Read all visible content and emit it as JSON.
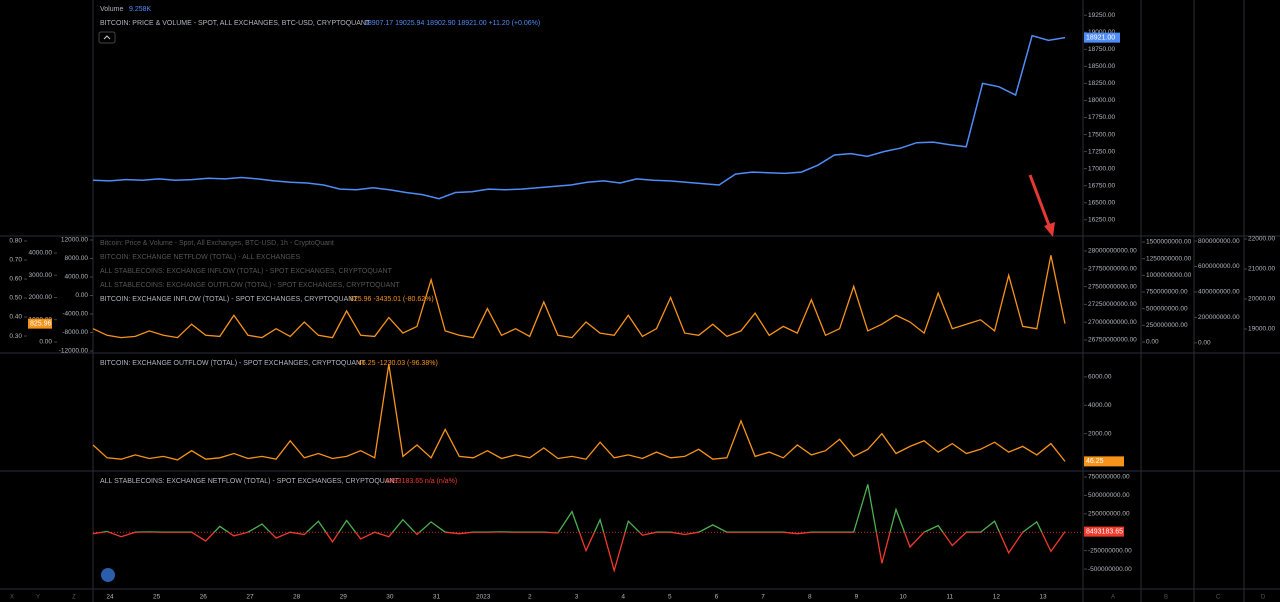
{
  "chart_data": [
    {
      "type": "line",
      "volume_label": "Volume",
      "volume_value": "9.258K",
      "title": "BITCOIN: PRICE & VOLUME - SPOT, ALL EXCHANGES, BTC-USD, CRYPTOQUANT",
      "ohlc": "18907.17 19025.94 18902.90 18921.00 +11.20 (+0.06%)",
      "price_tag": "18921.00",
      "color": "#4f8cf7",
      "values": [
        16830,
        16820,
        16840,
        16830,
        16850,
        16830,
        16840,
        16860,
        16850,
        16870,
        16850,
        16820,
        16800,
        16790,
        16760,
        16700,
        16690,
        16720,
        16690,
        16650,
        16620,
        16560,
        16650,
        16660,
        16700,
        16690,
        16700,
        16720,
        16740,
        16760,
        16800,
        16820,
        16790,
        16850,
        16830,
        16820,
        16800,
        16780,
        16760,
        16920,
        16950,
        16940,
        16930,
        16950,
        17050,
        17200,
        17220,
        17180,
        17250,
        17300,
        17380,
        17390,
        17350,
        17320,
        18250,
        18200,
        18080,
        18950,
        18880,
        18921
      ],
      "ylim": [
        16027,
        19473
      ],
      "yticks": [
        {
          "value": 19250,
          "label": "19250.00"
        },
        {
          "value": 19000,
          "label": "19000.00"
        },
        {
          "value": 18750,
          "label": "18750.00"
        },
        {
          "value": 18500,
          "label": "18500.00"
        },
        {
          "value": 18250,
          "label": "18250.00"
        },
        {
          "value": 18000,
          "label": "18000.00"
        },
        {
          "value": 17750,
          "label": "17750.00"
        },
        {
          "value": 17500,
          "label": "17500.00"
        },
        {
          "value": 17250,
          "label": "17250.00"
        },
        {
          "value": 17000,
          "label": "17000.00"
        },
        {
          "value": 16750,
          "label": "16750.00"
        },
        {
          "value": 16500,
          "label": "16500.00"
        },
        {
          "value": 16250,
          "label": "16250.00"
        }
      ],
      "xticks": [
        "24",
        "25",
        "26",
        "27",
        "28",
        "29",
        "30",
        "31",
        "2023",
        "2",
        "3",
        "4",
        "5",
        "6",
        "7",
        "8",
        "9",
        "10",
        "11",
        "12",
        "13"
      ]
    },
    {
      "type": "line",
      "legend": [
        "Bitcoin: Price & Volume - Spot, All Exchanges, BTC-USD, 1h - CryptoQuant",
        "BITCOIN: EXCHANGE NETFLOW (TOTAL) - ALL EXCHANGES",
        "ALL STABLECOINS: EXCHANGE INFLOW (TOTAL) - SPOT EXCHANGES, CRYPTOQUANT",
        "ALL STABLECOINS: EXCHANGE OUTFLOW (TOTAL) - SPOT EXCHANGES, CRYPTOQUANT"
      ],
      "title": "BITCOIN: EXCHANGE INFLOW (TOTAL) - SPOT EXCHANGES, CRYPTOQUANT",
      "stats": "825.96 -3435.01 (-80.62%)",
      "value_tag": "825.96",
      "color": "#f7931a",
      "values": [
        600,
        300,
        200,
        250,
        500,
        300,
        200,
        800,
        300,
        250,
        1200,
        300,
        200,
        600,
        250,
        900,
        300,
        200,
        1400,
        300,
        250,
        1100,
        400,
        700,
        2800,
        500,
        300,
        200,
        1500,
        300,
        600,
        250,
        1800,
        300,
        200,
        900,
        400,
        300,
        1200,
        250,
        600,
        2000,
        400,
        300,
        800,
        250,
        500,
        1300,
        300,
        700,
        400,
        1900,
        300,
        600,
        2500,
        500,
        800,
        1200,
        900,
        400,
        2200,
        600,
        800,
        1000,
        500,
        3000,
        700,
        600,
        3900,
        825.96
      ],
      "ylim": [
        -449,
        4719
      ],
      "yticks": [
        {
          "value": 4000,
          "label": "4000.00"
        },
        {
          "value": 3000,
          "label": "3000.00"
        },
        {
          "value": 2000,
          "label": "2000.00"
        },
        {
          "value": 1000,
          "label": "1000.00"
        },
        {
          "value": 0,
          "label": "0.00"
        }
      ],
      "extra_axes": [
        {
          "ylim": [
            0.216,
            0.821
          ],
          "yticks": [
            {
              "value": 0.8,
              "label": "0.80"
            },
            {
              "value": 0.7,
              "label": "0.70"
            },
            {
              "value": 0.6,
              "label": "0.60"
            },
            {
              "value": 0.5,
              "label": "0.50"
            },
            {
              "value": 0.4,
              "label": "0.40"
            },
            {
              "value": 0.3,
              "label": "0.30"
            }
          ]
        },
        {
          "ylim": [
            -12216,
            12649
          ],
          "yticks": [
            {
              "value": 12000,
              "label": "12000.00"
            },
            {
              "value": 8000,
              "label": "8000.00"
            },
            {
              "value": 4000,
              "label": "4000.00"
            },
            {
              "value": 0,
              "label": "0.00"
            },
            {
              "value": -4000,
              "label": "-4000.00"
            },
            {
              "value": -8000,
              "label": "-8000.00"
            },
            {
              "value": -12000,
              "label": "-12000.00"
            }
          ]
        },
        {
          "ylim": [
            26581000000,
            28197000000
          ],
          "yticks": [
            {
              "value": 28000000000,
              "label": "28000000000.00"
            },
            {
              "value": 27750000000,
              "label": "27750000000.00"
            },
            {
              "value": 27500000000,
              "label": "27500000000.00"
            },
            {
              "value": 27250000000,
              "label": "27250000000.00"
            },
            {
              "value": 27000000000,
              "label": "27000000000.00"
            },
            {
              "value": 26750000000,
              "label": "26750000000.00"
            }
          ]
        },
        {
          "ylim": [
            -150000000,
            1575000000
          ],
          "yticks": [
            {
              "value": 1500000000,
              "label": "1500000000.00"
            },
            {
              "value": 1250000000,
              "label": "1250000000.00"
            },
            {
              "value": 1000000000,
              "label": "1000000000.00"
            },
            {
              "value": 750000000,
              "label": "750000000.00"
            },
            {
              "value": 500000000,
              "label": "500000000.00"
            },
            {
              "value": 250000000,
              "label": "250000000.00"
            },
            {
              "value": 0,
              "label": "0.00"
            }
          ]
        },
        {
          "ylim": [
            -72000000,
            832000000
          ],
          "yticks": [
            {
              "value": 800000000,
              "label": "800000000.00"
            },
            {
              "value": 600000000,
              "label": "600000000.00"
            },
            {
              "value": 400000000,
              "label": "400000000.00"
            },
            {
              "value": 200000000,
              "label": "200000000.00"
            },
            {
              "value": 0,
              "label": "0.00"
            }
          ]
        },
        {
          "ylim": [
            18233,
            22067
          ],
          "yticks": [
            {
              "value": 22000,
              "label": "22000.00"
            },
            {
              "value": 21000,
              "label": "21000.00"
            },
            {
              "value": 20000,
              "label": "20000.00"
            },
            {
              "value": 19000,
              "label": "19000.00"
            }
          ]
        }
      ]
    },
    {
      "type": "line",
      "title": "BITCOIN: EXCHANGE OUTFLOW (TOTAL) - SPOT EXCHANGES, CRYPTOQUANT",
      "stats": "46.25 -1230.03 (-96.38%)",
      "value_tag": "46.25",
      "color": "#f7931a",
      "values": [
        1200,
        300,
        200,
        500,
        250,
        400,
        150,
        800,
        200,
        300,
        600,
        250,
        400,
        200,
        1500,
        300,
        600,
        250,
        400,
        800,
        300,
        6900,
        400,
        1200,
        300,
        2300,
        400,
        300,
        800,
        250,
        500,
        300,
        1000,
        250,
        400,
        200,
        1400,
        300,
        500,
        250,
        700,
        300,
        400,
        900,
        200,
        300,
        2900,
        400,
        700,
        300,
        1200,
        500,
        800,
        1600,
        400,
        900,
        2000,
        600,
        1100,
        1500,
        700,
        1300,
        600,
        900,
        1400,
        700,
        1100,
        500,
        1300,
        46.25
      ],
      "ylim": [
        -561,
        7614
      ],
      "yticks": [
        {
          "value": 6000,
          "label": "6000.00"
        },
        {
          "value": 4000,
          "label": "4000.00"
        },
        {
          "value": 2000,
          "label": "2000.00"
        }
      ]
    },
    {
      "type": "line",
      "title": "ALL STABLECOINS: EXCHANGE NETFLOW (TOTAL) - SPOT EXCHANGES, CRYPTOQUANT",
      "stats": "8493183.65 n/a (n/a%)",
      "value_tag": "8493183.65",
      "color_up": "#4caf50",
      "color_down": "#f0392b",
      "values": [
        -20000000,
        10000000,
        -60000000,
        0,
        5000000,
        0,
        0,
        0,
        -120000000,
        80000000,
        -50000000,
        0,
        110000000,
        -80000000,
        0,
        -30000000,
        150000000,
        -130000000,
        160000000,
        -90000000,
        0,
        -60000000,
        170000000,
        -30000000,
        140000000,
        0,
        -20000000,
        0,
        0,
        5000000,
        0,
        0,
        0,
        -10000000,
        280000000,
        -250000000,
        170000000,
        -520000000,
        150000000,
        -40000000,
        0,
        0,
        -30000000,
        0,
        100000000,
        0,
        0,
        0,
        0,
        0,
        -20000000,
        0,
        0,
        0,
        0,
        650000000,
        -420000000,
        310000000,
        -200000000,
        0,
        90000000,
        -180000000,
        0,
        0,
        150000000,
        -280000000,
        0,
        140000000,
        -260000000,
        8493183.65
      ],
      "ylim": [
        -757000000,
        818000000
      ],
      "yticks": [
        {
          "value": 750000000,
          "label": "750000000.00"
        },
        {
          "value": 500000000,
          "label": "500000000.00"
        },
        {
          "value": 250000000,
          "label": "250000000.00"
        },
        {
          "value": -250000000,
          "label": "-250000000.00"
        },
        {
          "value": -500000000,
          "label": "-500000000.00"
        }
      ]
    }
  ],
  "ui": {
    "scroll_left": [
      "X",
      "Y",
      "Z"
    ],
    "scroll_right": [
      "A",
      "B",
      "C",
      "D"
    ]
  }
}
